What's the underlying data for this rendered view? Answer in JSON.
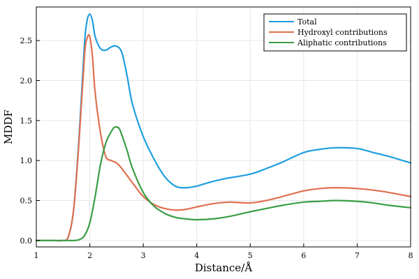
{
  "chart_data": {
    "type": "line",
    "title": "",
    "xlabel": "Distance/Å",
    "ylabel": "MDDF",
    "xlim": [
      1,
      8
    ],
    "ylim": [
      -0.08,
      2.92
    ],
    "xticks": [
      1,
      2,
      3,
      4,
      5,
      6,
      7,
      8
    ],
    "xtick_labels": [
      "1",
      "2",
      "3",
      "4",
      "5",
      "6",
      "7",
      "8"
    ],
    "yticks": [
      0.0,
      0.5,
      1.0,
      1.5,
      2.0,
      2.5
    ],
    "ytick_labels": [
      "0.0",
      "0.5",
      "1.0",
      "1.5",
      "2.0",
      "2.5"
    ],
    "grid": true,
    "legend_position": "top-right",
    "series": [
      {
        "name": "Total",
        "color": "#1f9ee0",
        "x": [
          1.0,
          1.3,
          1.5,
          1.6,
          1.7,
          1.8,
          1.9,
          1.95,
          2.0,
          2.05,
          2.1,
          2.2,
          2.3,
          2.4,
          2.5,
          2.6,
          2.7,
          2.8,
          3.0,
          3.2,
          3.4,
          3.6,
          3.8,
          4.0,
          4.2,
          4.5,
          5.0,
          5.3,
          5.6,
          6.0,
          6.3,
          6.6,
          7.0,
          7.3,
          7.6,
          8.0
        ],
        "y": [
          0.0,
          0.0,
          0.0,
          0.05,
          0.4,
          1.3,
          2.45,
          2.75,
          2.83,
          2.75,
          2.55,
          2.4,
          2.38,
          2.42,
          2.43,
          2.35,
          2.05,
          1.7,
          1.3,
          1.02,
          0.8,
          0.68,
          0.66,
          0.68,
          0.72,
          0.77,
          0.83,
          0.9,
          0.98,
          1.1,
          1.14,
          1.16,
          1.15,
          1.1,
          1.05,
          0.97
        ]
      },
      {
        "name": "Hydroxyl contributions",
        "color": "#e07050",
        "x": [
          1.0,
          1.3,
          1.5,
          1.6,
          1.7,
          1.8,
          1.9,
          1.95,
          2.0,
          2.05,
          2.1,
          2.2,
          2.3,
          2.4,
          2.5,
          2.6,
          2.8,
          3.0,
          3.2,
          3.4,
          3.6,
          3.8,
          4.0,
          4.3,
          4.6,
          5.0,
          5.3,
          5.6,
          6.0,
          6.3,
          6.6,
          7.0,
          7.3,
          7.6,
          8.0
        ],
        "y": [
          0.0,
          0.0,
          0.0,
          0.05,
          0.4,
          1.25,
          2.3,
          2.53,
          2.55,
          2.3,
          1.85,
          1.35,
          1.05,
          1.0,
          0.97,
          0.9,
          0.72,
          0.55,
          0.45,
          0.4,
          0.38,
          0.39,
          0.42,
          0.46,
          0.48,
          0.47,
          0.5,
          0.55,
          0.62,
          0.65,
          0.66,
          0.65,
          0.63,
          0.6,
          0.55
        ]
      },
      {
        "name": "Aliphatic contributions",
        "color": "#3a9e45",
        "x": [
          1.0,
          1.3,
          1.6,
          1.7,
          1.8,
          1.9,
          2.0,
          2.1,
          2.2,
          2.3,
          2.4,
          2.45,
          2.5,
          2.55,
          2.6,
          2.7,
          2.8,
          3.0,
          3.2,
          3.4,
          3.6,
          3.8,
          4.0,
          4.3,
          4.6,
          5.0,
          5.3,
          5.6,
          6.0,
          6.3,
          6.6,
          7.0,
          7.3,
          7.6,
          8.0
        ],
        "y": [
          0.0,
          0.0,
          0.0,
          0.0,
          0.01,
          0.06,
          0.22,
          0.55,
          0.95,
          1.22,
          1.36,
          1.41,
          1.42,
          1.4,
          1.32,
          1.12,
          0.9,
          0.6,
          0.43,
          0.34,
          0.29,
          0.27,
          0.26,
          0.27,
          0.3,
          0.36,
          0.4,
          0.44,
          0.48,
          0.49,
          0.5,
          0.49,
          0.47,
          0.44,
          0.41
        ]
      }
    ]
  }
}
